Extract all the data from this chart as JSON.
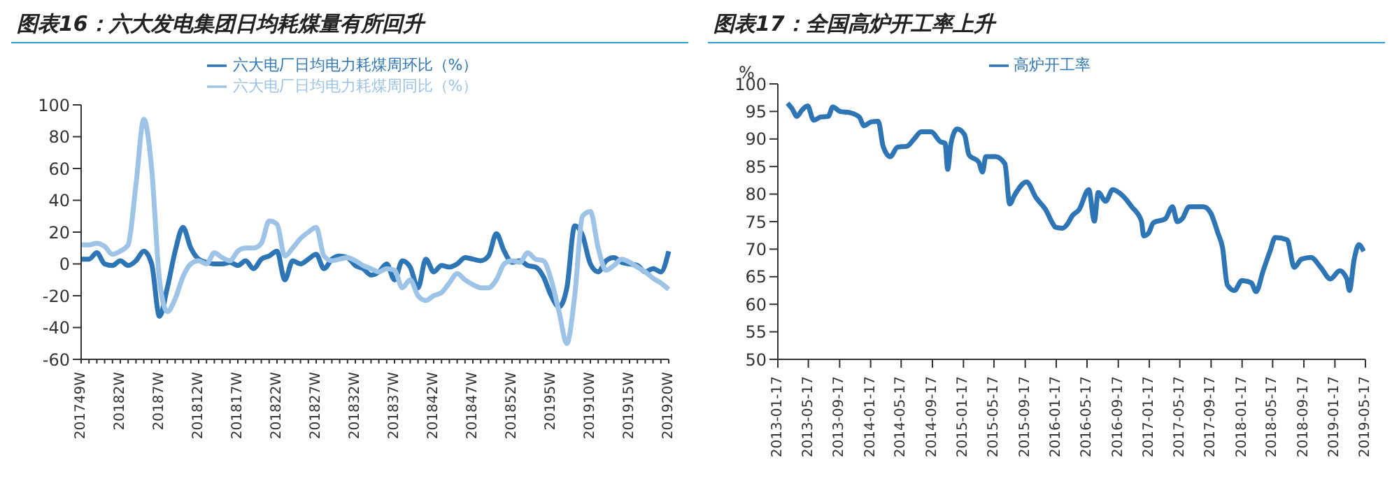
{
  "chart_data": [
    {
      "type": "line",
      "title": "图表16：六大发电集团日均耗煤量有所回升",
      "categories": [
        "201749W",
        null,
        null,
        null,
        null,
        "20182W",
        null,
        null,
        null,
        null,
        "20187W",
        null,
        null,
        null,
        null,
        "201812W",
        null,
        null,
        null,
        null,
        "201817W",
        null,
        null,
        null,
        null,
        "201822W",
        null,
        null,
        null,
        null,
        "201827W",
        null,
        null,
        null,
        null,
        "201832W",
        null,
        null,
        null,
        null,
        "201837W",
        null,
        null,
        null,
        null,
        "201842W",
        null,
        null,
        null,
        null,
        "201847W",
        null,
        null,
        null,
        null,
        "201852W",
        null,
        null,
        null,
        null,
        "20195W",
        null,
        null,
        null,
        null,
        "201910W",
        null,
        null,
        null,
        null,
        "201915W",
        null,
        null,
        null,
        null,
        "201920W"
      ],
      "series": [
        {
          "name": "六大电厂日均电力耗煤周环比（%）",
          "color": "#2e75b6",
          "values": [
            3,
            3,
            7,
            0,
            -1,
            2,
            -1,
            2,
            8,
            0,
            -33,
            -15,
            8,
            23,
            10,
            3,
            1,
            0,
            0,
            1,
            -1,
            2,
            -3,
            3,
            5,
            8,
            -10,
            2,
            0,
            3,
            6,
            -3,
            3,
            5,
            4,
            -1,
            -3,
            -7,
            -5,
            0,
            -10,
            2,
            -2,
            -15,
            3,
            -5,
            -1,
            -2,
            0,
            4,
            3,
            2,
            5,
            19,
            8,
            1,
            2,
            -1,
            -2,
            -8,
            -20,
            -27,
            -15,
            24,
            18,
            0,
            -5,
            2,
            4,
            1,
            0,
            -1,
            -5,
            -3,
            -5,
            8
          ]
        },
        {
          "name": "六大电厂日均电力耗煤周同比（%）",
          "color": "#9dc3e6",
          "values": [
            12,
            12,
            13,
            11,
            6,
            8,
            12,
            50,
            91,
            60,
            -10,
            -30,
            -22,
            -8,
            0,
            2,
            0,
            7,
            4,
            2,
            8,
            10,
            10,
            13,
            27,
            25,
            5,
            10,
            16,
            20,
            23,
            5,
            2,
            3,
            4,
            2,
            -1,
            -3,
            -5,
            -3,
            -4,
            -15,
            -10,
            -20,
            -23,
            -20,
            -18,
            -12,
            -6,
            -10,
            -13,
            -15,
            -15,
            -10,
            0,
            2,
            1,
            7,
            3,
            2,
            -10,
            -30,
            -50,
            -20,
            30,
            33,
            10,
            -4,
            -1,
            3,
            1,
            -2,
            -5,
            -9,
            -12,
            -16
          ]
        }
      ],
      "ylim": [
        -60,
        100
      ],
      "yticks": [
        -60,
        -40,
        -20,
        0,
        20,
        40,
        60,
        80,
        100
      ],
      "grid": false,
      "legend": "top"
    },
    {
      "type": "line",
      "title": "图表17：全国高炉开工率上升",
      "ylabel": "%",
      "x": [
        "2013-02-24",
        "2013-03-14",
        "2013-04-02",
        "2013-04-21",
        "2013-05-14",
        "2013-06-07",
        "2013-07-05",
        "2013-08-03",
        "2013-08-21",
        "2013-09-19",
        "2013-10-26",
        "2013-12-03",
        "2013-12-22",
        "2014-01-19",
        "2014-02-16",
        "2014-03-07",
        "2014-04-04",
        "2014-05-02",
        "2014-06-09",
        "2014-07-07",
        "2014-08-04",
        "2014-09-11",
        "2014-10-19",
        "2014-11-06",
        "2014-11-16",
        "2014-11-29",
        "2014-12-23",
        "2015-01-21",
        "2015-02-08",
        "2015-03-18",
        "2015-04-02",
        "2015-04-15",
        "2015-05-23",
        "2015-06-29",
        "2015-07-18",
        "2015-08-06",
        "2015-09-22",
        "2015-10-30",
        "2015-12-06",
        "2016-01-04",
        "2016-01-13",
        "2016-02-10",
        "2016-02-29",
        "2016-03-19",
        "2016-04-16",
        "2016-05-24",
        "2016-06-15",
        "2016-06-30",
        "2016-07-29",
        "2016-08-26",
        "2016-10-02",
        "2016-11-09",
        "2016-12-17",
        "2016-12-26",
        "2017-01-14",
        "2017-02-02",
        "2017-03-21",
        "2017-04-18",
        "2017-05-07",
        "2017-05-26",
        "2017-06-23",
        "2017-08-18",
        "2017-09-15",
        "2017-10-14",
        "2017-11-01",
        "2017-11-20",
        "2017-12-18",
        "2018-01-16",
        "2018-02-22",
        "2018-03-13",
        "2018-04-10",
        "2018-05-08",
        "2018-05-27",
        "2018-07-13",
        "2018-08-10",
        "2018-09-08",
        "2018-10-15",
        "2018-11-22",
        "2018-12-30",
        "2019-02-05",
        "2019-03-05",
        "2019-03-15",
        "2019-04-03",
        "2019-04-21",
        "2019-05-10"
      ],
      "series": [
        {
          "name": "高炉开工率",
          "color": "#2e75b6",
          "values": [
            96.5,
            95.5,
            94.1,
            95.2,
            96,
            93.4,
            94,
            94.1,
            95.8,
            95,
            94.8,
            94,
            92.4,
            93.1,
            93.2,
            88.7,
            86.8,
            88.5,
            88.7,
            90,
            91.3,
            91.3,
            89.5,
            89.2,
            84.5,
            89.2,
            91.8,
            90.8,
            87.1,
            85.8,
            84,
            86.8,
            86.8,
            85.5,
            78.2,
            79.8,
            82.2,
            79.3,
            77.2,
            74.6,
            74,
            73.8,
            74.5,
            76,
            77.2,
            80.8,
            75.1,
            80.3,
            78.7,
            80.8,
            79.8,
            77.7,
            75.1,
            72.4,
            72.9,
            74.8,
            75.5,
            77.7,
            75,
            75.5,
            77.7,
            77.7,
            76.6,
            72.9,
            70.3,
            63.5,
            62.5,
            64.3,
            63.9,
            62.3,
            66.1,
            69.8,
            72.1,
            71.7,
            66.7,
            68.2,
            68.5,
            66.7,
            64.6,
            66.1,
            64.6,
            62.5,
            68.2,
            70.8,
            69.6
          ]
        }
      ],
      "xlim": [
        "2013-01-17",
        "2019-05-17"
      ],
      "xticks": [
        "2013-01-17",
        "2013-05-17",
        "2013-09-17",
        "2014-01-17",
        "2014-05-17",
        "2014-09-17",
        "2015-01-17",
        "2015-05-17",
        "2015-09-17",
        "2016-01-17",
        "2016-05-17",
        "2016-09-17",
        "2017-01-17",
        "2017-05-17",
        "2017-09-17",
        "2018-01-17",
        "2018-05-17",
        "2018-09-17",
        "2019-01-17",
        "2019-05-17"
      ],
      "ylim": [
        50,
        100
      ],
      "yticks": [
        50,
        55,
        60,
        65,
        70,
        75,
        80,
        85,
        90,
        95,
        100
      ],
      "grid": false,
      "legend": "top"
    }
  ]
}
